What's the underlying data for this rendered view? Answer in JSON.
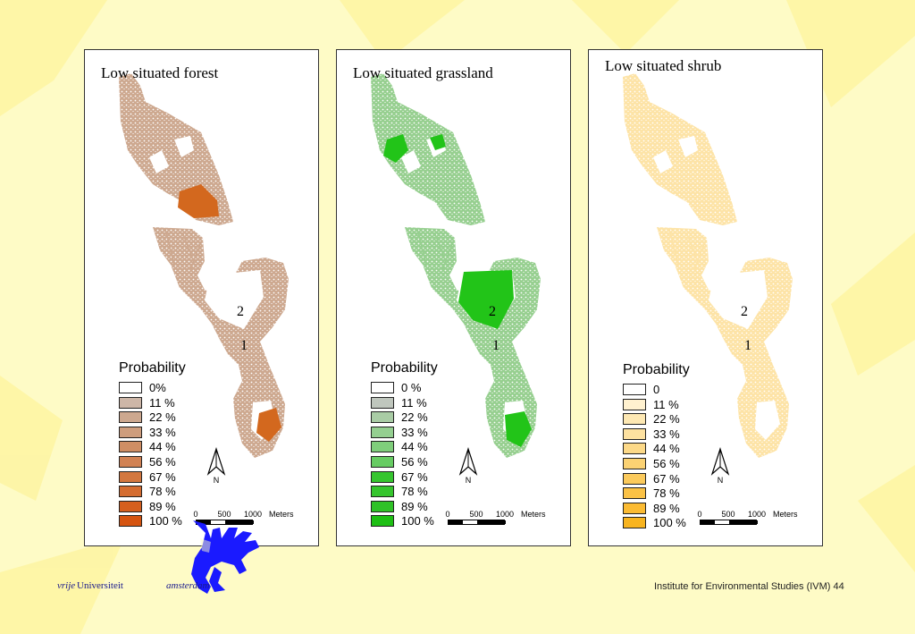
{
  "panels": [
    {
      "title": "Low situated forest",
      "legend_title": "Probability",
      "legend": [
        {
          "label": "0%",
          "color": "#ffffff"
        },
        {
          "label": "11 %",
          "color": "#cdb6a7"
        },
        {
          "label": "22 %",
          "color": "#cda88f"
        },
        {
          "label": "33 %",
          "color": "#ce9d7d"
        },
        {
          "label": "44 %",
          "color": "#cf8e64"
        },
        {
          "label": "56 %",
          "color": "#d18254"
        },
        {
          "label": "67 %",
          "color": "#d3773f"
        },
        {
          "label": "78 %",
          "color": "#d46c30"
        },
        {
          "label": "89 %",
          "color": "#d55f1e"
        },
        {
          "label": "100 %",
          "color": "#d55410"
        }
      ],
      "area_labels": [
        "2",
        "1"
      ],
      "scale": {
        "ticks": [
          "0",
          "500",
          "1000"
        ],
        "unit": "Meters"
      },
      "north": "N",
      "map_fill": "#cda88f",
      "map_high": "#d3681e"
    },
    {
      "title": "Low situated grassland",
      "legend_title": "Probability",
      "legend": [
        {
          "label": "0 %",
          "color": "#ffffff"
        },
        {
          "label": "11 %",
          "color": "#bfc6bd"
        },
        {
          "label": "22 %",
          "color": "#a9cca5"
        },
        {
          "label": "33 %",
          "color": "#94cf90"
        },
        {
          "label": "44 %",
          "color": "#7fce7b"
        },
        {
          "label": "56 %",
          "color": "#67cc63"
        },
        {
          "label": "67 %",
          "color": "#36c52f"
        },
        {
          "label": "78 %",
          "color": "#35c52d"
        },
        {
          "label": "89 %",
          "color": "#2fc227"
        },
        {
          "label": "100 %",
          "color": "#1ebf14"
        }
      ],
      "area_labels": [
        "2",
        "1"
      ],
      "scale": {
        "ticks": [
          "0",
          "500",
          "1000"
        ],
        "unit": "Meters"
      },
      "north": "N",
      "map_fill": "#96cf8f",
      "map_high": "#22c418"
    },
    {
      "title": "Low situated shrub",
      "legend_title": "Probability",
      "legend": [
        {
          "label": "0",
          "color": "#ffffff"
        },
        {
          "label": "11 %",
          "color": "#fff1cf"
        },
        {
          "label": "22 %",
          "color": "#fde8b3"
        },
        {
          "label": "33 %",
          "color": "#fde1a0"
        },
        {
          "label": "44 %",
          "color": "#fcd988"
        },
        {
          "label": "56 %",
          "color": "#fbd273"
        },
        {
          "label": "67 %",
          "color": "#fbca5c"
        },
        {
          "label": "78 %",
          "color": "#fbc246"
        },
        {
          "label": "89 %",
          "color": "#fbbb33"
        },
        {
          "label": "100 %",
          "color": "#f8b41f"
        }
      ],
      "area_labels": [
        "2",
        "1"
      ],
      "scale": {
        "ticks": [
          "0",
          "500",
          "1000"
        ],
        "unit": "Meters"
      },
      "north": "N",
      "map_fill": "#fde3a6",
      "map_high": "#fcd988"
    }
  ],
  "footer": {
    "vrije": "vrije",
    "universiteit": "Universiteit",
    "amsterdam": "amsterdam",
    "institute": "Institute for Environmental Studies (IVM) 44"
  },
  "colors": {
    "background": "#fefbc6",
    "decoration": "#fdf5a0",
    "logo_blue": "#1a1aff"
  }
}
